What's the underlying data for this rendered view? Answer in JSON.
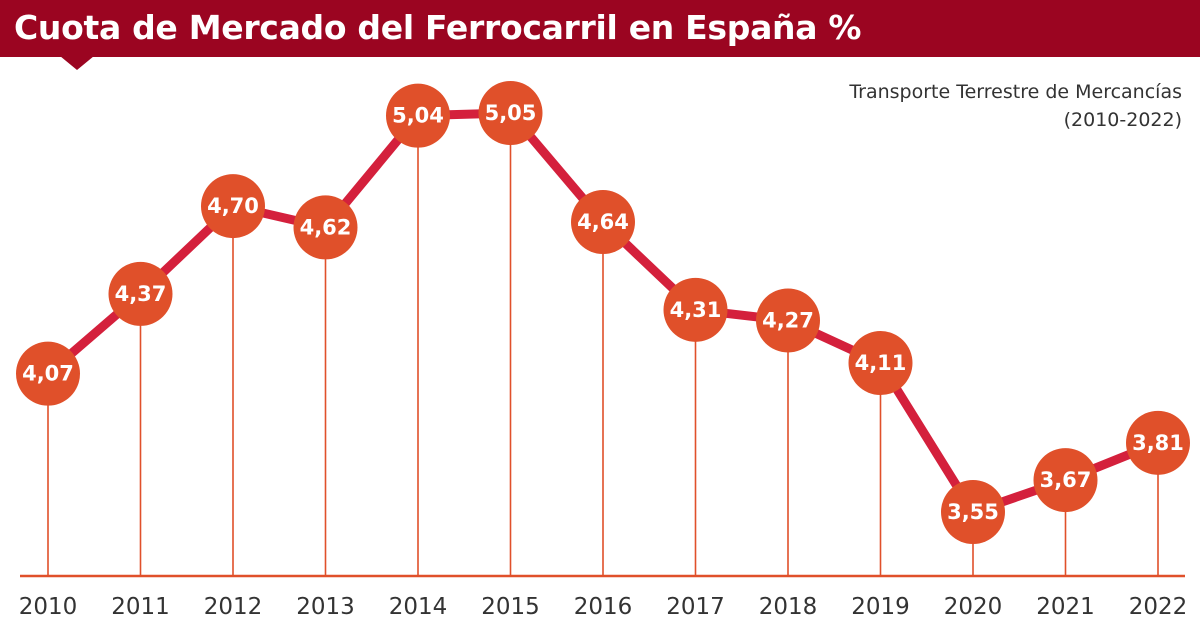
{
  "header": {
    "title": "Cuota de Mercado del Ferrocarril en España %",
    "subtitle_line1": "Transporte Terrestre de Mercancías",
    "subtitle_line2": "(2010-2022)"
  },
  "colors": {
    "title_bar": "#9b0521",
    "line": "#d4203c",
    "marker": "#e0502a",
    "axis": "#e0502a",
    "text": "#333333"
  },
  "chart_data": {
    "type": "line",
    "title": "Cuota de Mercado del Ferrocarril en España %",
    "subtitle": "Transporte Terrestre de Mercancías (2010-2022)",
    "categories": [
      "2010",
      "2011",
      "2012",
      "2013",
      "2014",
      "2015",
      "2016",
      "2017",
      "2018",
      "2019",
      "2020",
      "2021",
      "2022"
    ],
    "values": [
      4.07,
      4.37,
      4.7,
      4.62,
      5.04,
      5.05,
      4.64,
      4.31,
      4.27,
      4.11,
      3.55,
      3.67,
      3.81
    ],
    "value_labels": [
      "4,07",
      "4,37",
      "4,70",
      "4,62",
      "5,04",
      "5,05",
      "4,64",
      "4,31",
      "4,27",
      "4,11",
      "3,55",
      "3,67",
      "3,81"
    ],
    "xlabel": "",
    "ylabel": "",
    "grid": false,
    "legend": "none"
  }
}
